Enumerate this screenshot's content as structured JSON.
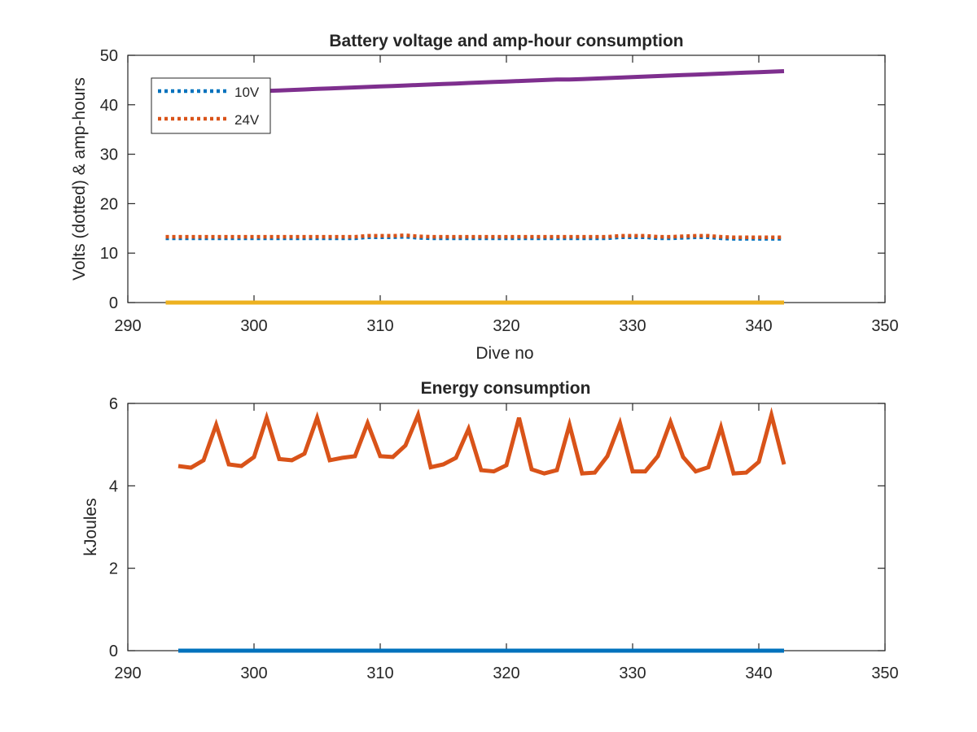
{
  "chart_data": [
    {
      "type": "line",
      "title": "Battery voltage and amp-hour consumption",
      "xlabel": "Dive no",
      "ylabel": "Volts (dotted) & amp-hours",
      "xlim": [
        290,
        350
      ],
      "ylim": [
        0,
        50
      ],
      "xticks": [
        290,
        300,
        310,
        320,
        330,
        340,
        350
      ],
      "yticks": [
        0,
        10,
        20,
        30,
        40,
        50
      ],
      "grid": false,
      "legend": {
        "placement": "top-left",
        "entries": [
          "10V",
          "24V"
        ]
      },
      "x": [
        293,
        294,
        295,
        296,
        297,
        298,
        299,
        300,
        301,
        302,
        303,
        304,
        305,
        306,
        307,
        308,
        309,
        310,
        311,
        312,
        313,
        314,
        315,
        316,
        317,
        318,
        319,
        320,
        321,
        322,
        323,
        324,
        325,
        326,
        327,
        328,
        329,
        330,
        331,
        332,
        333,
        334,
        335,
        336,
        337,
        338,
        339,
        340,
        341,
        342
      ],
      "series": [
        {
          "name": "10V",
          "style": "dotted",
          "color": "#0072BD",
          "values": [
            13.0,
            13.0,
            13.0,
            13.0,
            13.0,
            13.0,
            13.0,
            13.0,
            13.0,
            13.0,
            13.0,
            13.0,
            13.0,
            13.0,
            13.0,
            13.0,
            13.2,
            13.2,
            13.2,
            13.3,
            13.1,
            13.0,
            13.0,
            13.0,
            13.0,
            13.0,
            13.0,
            13.0,
            13.0,
            13.0,
            13.0,
            13.0,
            13.0,
            13.0,
            13.0,
            13.0,
            13.2,
            13.2,
            13.2,
            13.0,
            13.0,
            13.1,
            13.2,
            13.2,
            13.0,
            12.9,
            12.9,
            12.9,
            12.9,
            12.9
          ]
        },
        {
          "name": "24V",
          "style": "dotted",
          "color": "#D95319",
          "values": [
            13.3,
            13.3,
            13.3,
            13.3,
            13.3,
            13.3,
            13.3,
            13.3,
            13.3,
            13.3,
            13.3,
            13.3,
            13.3,
            13.3,
            13.3,
            13.3,
            13.5,
            13.5,
            13.5,
            13.6,
            13.4,
            13.3,
            13.3,
            13.3,
            13.3,
            13.3,
            13.3,
            13.3,
            13.3,
            13.3,
            13.3,
            13.3,
            13.3,
            13.3,
            13.3,
            13.3,
            13.5,
            13.5,
            13.5,
            13.3,
            13.3,
            13.4,
            13.5,
            13.5,
            13.3,
            13.2,
            13.2,
            13.2,
            13.2,
            13.2
          ]
        },
        {
          "style": "solid",
          "color": "#EDB120",
          "values": [
            0,
            0,
            0,
            0,
            0,
            0,
            0,
            0,
            0,
            0,
            0,
            0,
            0,
            0,
            0,
            0,
            0,
            0,
            0,
            0,
            0,
            0,
            0,
            0,
            0,
            0,
            0,
            0,
            0,
            0,
            0,
            0,
            0,
            0,
            0,
            0,
            0,
            0,
            0,
            0,
            0,
            0,
            0,
            0,
            0,
            0,
            0,
            0,
            0,
            0
          ]
        },
        {
          "style": "solid",
          "color": "#7E2F8E",
          "values": [
            42.0,
            42.1,
            42.2,
            42.3,
            42.4,
            42.5,
            42.6,
            42.7,
            42.8,
            42.9,
            43.0,
            43.1,
            43.2,
            43.3,
            43.4,
            43.5,
            43.6,
            43.7,
            43.8,
            43.9,
            44.0,
            44.1,
            44.2,
            44.3,
            44.4,
            44.5,
            44.6,
            44.7,
            44.8,
            44.9,
            45.0,
            45.1,
            45.1,
            45.2,
            45.3,
            45.4,
            45.5,
            45.6,
            45.7,
            45.8,
            45.9,
            46.0,
            46.1,
            46.2,
            46.3,
            46.4,
            46.5,
            46.6,
            46.7,
            46.8
          ]
        }
      ]
    },
    {
      "type": "line",
      "title": "Energy consumption",
      "xlabel": "",
      "ylabel": "kJoules",
      "xlim": [
        290,
        350
      ],
      "ylim": [
        0,
        6
      ],
      "xticks": [
        290,
        300,
        310,
        320,
        330,
        340,
        350
      ],
      "yticks": [
        0,
        2,
        4,
        6
      ],
      "grid": false,
      "x": [
        294,
        295,
        296,
        297,
        298,
        299,
        300,
        301,
        302,
        303,
        304,
        305,
        306,
        307,
        308,
        309,
        310,
        311,
        312,
        313,
        314,
        315,
        316,
        317,
        318,
        319,
        320,
        321,
        322,
        323,
        324,
        325,
        326,
        327,
        328,
        329,
        330,
        331,
        332,
        333,
        334,
        335,
        336,
        337,
        338,
        339,
        340,
        341,
        342
      ],
      "series": [
        {
          "style": "solid",
          "color": "#0072BD",
          "values": [
            0,
            0,
            0,
            0,
            0,
            0,
            0,
            0,
            0,
            0,
            0,
            0,
            0,
            0,
            0,
            0,
            0,
            0,
            0,
            0,
            0,
            0,
            0,
            0,
            0,
            0,
            0,
            0,
            0,
            0,
            0,
            0,
            0,
            0,
            0,
            0,
            0,
            0,
            0,
            0,
            0,
            0,
            0,
            0,
            0,
            0,
            0,
            0,
            0
          ]
        },
        {
          "style": "solid",
          "color": "#D95319",
          "values": [
            4.48,
            4.44,
            4.62,
            5.48,
            4.52,
            4.48,
            4.7,
            5.65,
            4.65,
            4.62,
            4.78,
            5.65,
            4.62,
            4.68,
            4.72,
            5.52,
            4.72,
            4.7,
            4.98,
            5.72,
            4.45,
            4.52,
            4.68,
            5.38,
            4.38,
            4.35,
            4.5,
            5.65,
            4.4,
            4.3,
            4.38,
            5.48,
            4.3,
            4.32,
            4.72,
            5.52,
            4.35,
            4.35,
            4.72,
            5.55,
            4.7,
            4.35,
            4.45,
            5.42,
            4.3,
            4.32,
            4.58,
            5.72,
            4.52
          ]
        }
      ]
    }
  ]
}
